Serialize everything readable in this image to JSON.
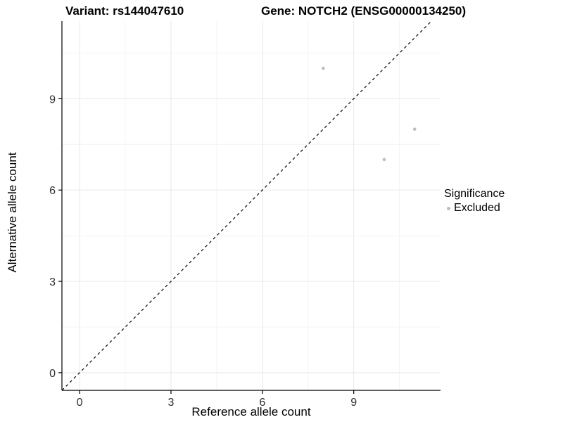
{
  "chart_data": {
    "type": "scatter",
    "title_left": "Variant: rs144047610",
    "title_right": "Gene: NOTCH2 (ENSG00000134250)",
    "xlabel": "Reference allele count",
    "ylabel": "Alternative allele count",
    "xlim": [
      -0.58,
      11.85
    ],
    "ylim": [
      -0.58,
      11.55
    ],
    "x_ticks": [
      0,
      3,
      6,
      9
    ],
    "y_ticks": [
      0,
      3,
      6,
      9
    ],
    "x_minor_ticks": [
      1.5,
      4.5,
      7.5,
      10.5
    ],
    "y_minor_ticks": [
      1.5,
      4.5,
      7.5,
      10.5
    ],
    "grid": true,
    "series": [
      {
        "name": "Excluded",
        "color": "#bdbdbd",
        "points": [
          [
            8,
            10
          ],
          [
            10,
            7
          ],
          [
            11,
            8
          ]
        ]
      }
    ],
    "reference_line": {
      "type": "identity",
      "style": "dashed",
      "color": "#000000"
    },
    "legend": {
      "title": "Significance",
      "position": "right",
      "items": [
        {
          "label": "Excluded",
          "color": "#bdbdbd"
        }
      ]
    },
    "colors": {
      "major_grid": "#e8e8e8",
      "minor_grid": "#f4f4f4",
      "axis_line": "#000000",
      "tick_label": "#303030"
    }
  }
}
